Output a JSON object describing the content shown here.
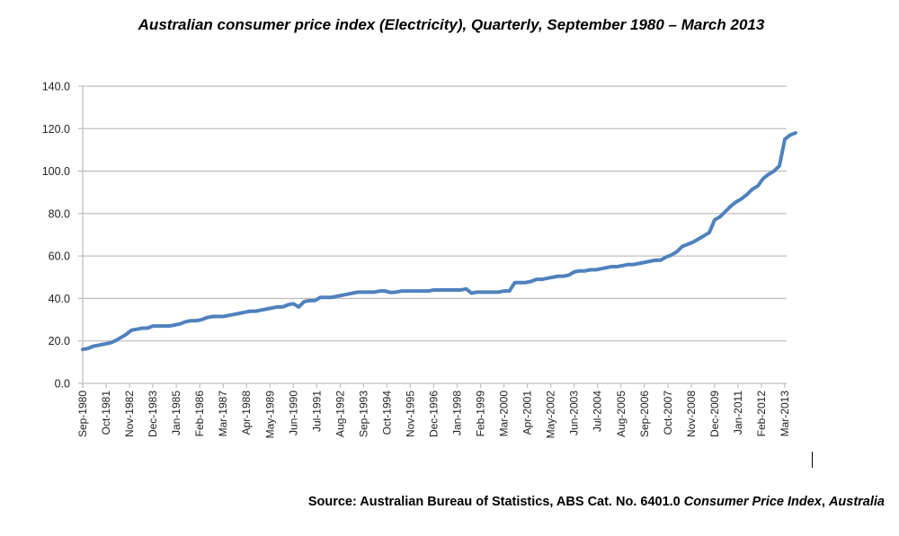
{
  "title": "Australian consumer price index (Electricity), Quarterly, September 1980 – March 2013",
  "source": {
    "prefix": "Source: Australian Bureau of Statistics, ABS Cat. No. 6401.0 ",
    "italic": "Consumer Price Index",
    "suffix": ", ",
    "italic2": "Australia"
  },
  "chart_data": {
    "type": "line",
    "title": "Australian consumer price index (Electricity), Quarterly, September 1980 – March 2013",
    "xlabel": "",
    "ylabel": "",
    "ylim": [
      0,
      140
    ],
    "yticks": [
      "0.0",
      "20.0",
      "40.0",
      "60.0",
      "80.0",
      "100.0",
      "120.0",
      "140.0"
    ],
    "xticks": [
      "Sep-1980",
      "Oct-1981",
      "Nov-1982",
      "Dec-1983",
      "Jan-1985",
      "Feb-1986",
      "Mar-1987",
      "Apr-1988",
      "May-1989",
      "Jun-1990",
      "Jul-1991",
      "Aug-1992",
      "Sep-1993",
      "Oct-1994",
      "Nov-1995",
      "Dec-1996",
      "Jan-1998",
      "Feb-1999",
      "Mar-2000",
      "Apr-2001",
      "May-2002",
      "Jun-2003",
      "Jul-2004",
      "Aug-2005",
      "Sep-2006",
      "Oct-2007",
      "Nov-2008",
      "Dec-2009",
      "Jan-2011",
      "Feb-2012",
      "Mar-2013"
    ],
    "grid": true,
    "legend": "none",
    "color": "#4f81bd",
    "series": [
      {
        "values": [
          16,
          16.5,
          17.5,
          18,
          18.5,
          19,
          20,
          21.5,
          23,
          25,
          25.5,
          26,
          26,
          27,
          27,
          27,
          27,
          27.5,
          28,
          29,
          29.5,
          29.5,
          30,
          31,
          31.5,
          31.5,
          31.5,
          32,
          32.5,
          33,
          33.5,
          34,
          34,
          34.5,
          35,
          35.5,
          36,
          36,
          37,
          37.5,
          36,
          38.5,
          39,
          39,
          40.5,
          40.5,
          40.5,
          41,
          41.5,
          42,
          42.5,
          43,
          43,
          43,
          43,
          43.5,
          43.5,
          42.8,
          43,
          43.5,
          43.5,
          43.5,
          43.5,
          43.5,
          43.5,
          44,
          44,
          44,
          44,
          44,
          44,
          44.5,
          42.5,
          43,
          43,
          43,
          43,
          43,
          43.5,
          43.5,
          47.5,
          47.5,
          47.5,
          48,
          49,
          49,
          49.5,
          50,
          50.5,
          50.5,
          51,
          52.5,
          53,
          53,
          53.5,
          53.5,
          54,
          54.5,
          55,
          55,
          55.5,
          56,
          56,
          56.5,
          57,
          57.5,
          58,
          58,
          59.5,
          60.5,
          62,
          64.5,
          65.5,
          66.5,
          68,
          69.5,
          71,
          77,
          78.5,
          81,
          83.5,
          85.5,
          87,
          89,
          91.5,
          93,
          96.5,
          98.5,
          100,
          102.5,
          115,
          117,
          118
        ]
      }
    ]
  }
}
